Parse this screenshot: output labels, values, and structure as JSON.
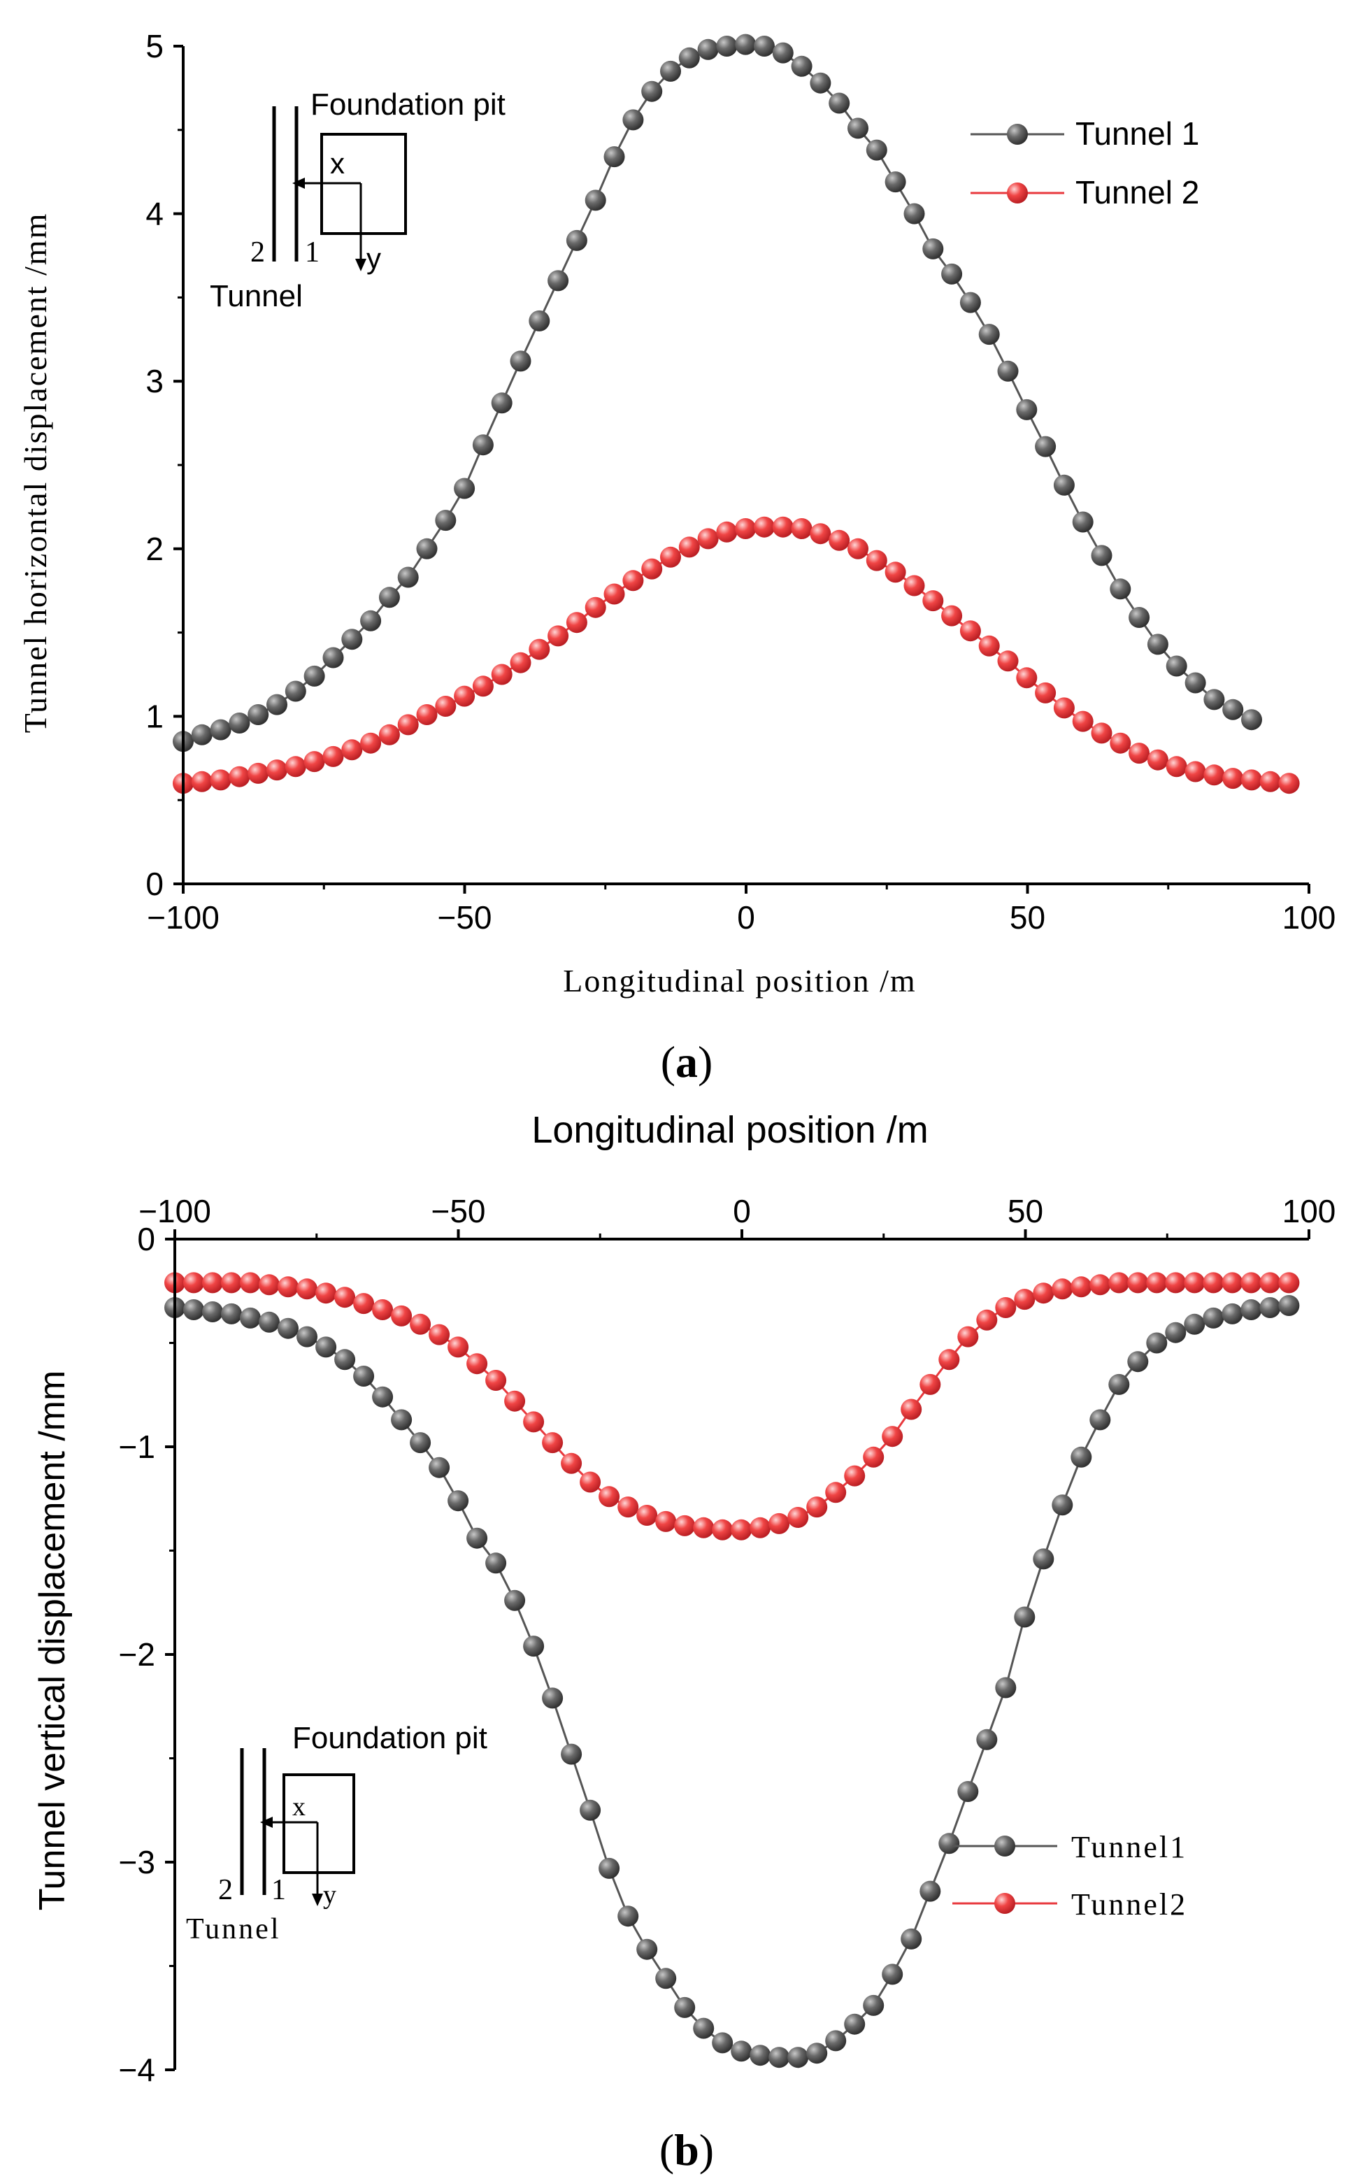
{
  "chart_data": [
    {
      "id": "a",
      "type": "line",
      "panel_label": "a",
      "title": "",
      "xlabel": "Longitudinal position /m",
      "ylabel": "Tunnel horizontal displacement /mm",
      "xlim": [
        -100,
        100
      ],
      "ylim": [
        0,
        5
      ],
      "xticks": [
        "−100",
        "−50",
        "0",
        "50",
        "100"
      ],
      "xtick_values": [
        -100,
        -50,
        0,
        50,
        100
      ],
      "yticks": [
        "0",
        "1",
        "2",
        "3",
        "4",
        "5"
      ],
      "ytick_values": [
        0,
        1,
        2,
        3,
        4,
        5
      ],
      "legend_position": "top-right",
      "grid": false,
      "series": [
        {
          "name": "Tunnel 1",
          "color": "#555555",
          "marker_highlight": "#b8b8b8",
          "line_color": "#555555",
          "x_start": -100,
          "x_step": 3.33,
          "values": [
            0.85,
            0.89,
            0.92,
            0.96,
            1.01,
            1.07,
            1.15,
            1.24,
            1.35,
            1.46,
            1.57,
            1.71,
            1.83,
            2.0,
            2.17,
            2.36,
            2.62,
            2.87,
            3.12,
            3.36,
            3.6,
            3.84,
            4.08,
            4.34,
            4.56,
            4.73,
            4.85,
            4.93,
            4.98,
            5.0,
            5.01,
            5.0,
            4.96,
            4.88,
            4.78,
            4.66,
            4.51,
            4.38,
            4.19,
            4.0,
            3.79,
            3.64,
            3.47,
            3.28,
            3.06,
            2.83,
            2.61,
            2.38,
            2.16,
            1.96,
            1.76,
            1.59,
            1.43,
            1.3,
            1.2,
            1.1,
            1.04,
            0.98
          ]
        },
        {
          "name": "Tunnel 2",
          "color": "#e8383d",
          "marker_highlight": "#ffc6c6",
          "line_color": "#e8383d",
          "x_start": -100,
          "x_step": 3.33,
          "values": [
            0.6,
            0.61,
            0.62,
            0.64,
            0.66,
            0.68,
            0.7,
            0.73,
            0.76,
            0.8,
            0.84,
            0.89,
            0.95,
            1.01,
            1.06,
            1.12,
            1.18,
            1.25,
            1.32,
            1.4,
            1.48,
            1.56,
            1.65,
            1.73,
            1.81,
            1.88,
            1.95,
            2.01,
            2.06,
            2.1,
            2.12,
            2.13,
            2.13,
            2.12,
            2.09,
            2.05,
            2.0,
            1.93,
            1.86,
            1.78,
            1.69,
            1.6,
            1.51,
            1.42,
            1.33,
            1.23,
            1.14,
            1.05,
            0.97,
            0.9,
            0.84,
            0.78,
            0.74,
            0.7,
            0.67,
            0.65,
            0.63,
            0.62,
            0.61,
            0.6
          ]
        }
      ],
      "inset": {
        "top_label": "Foundation pit",
        "x_label": "x",
        "y_label": "y",
        "line_label_left": "2",
        "line_label_right": "1",
        "bottom_label": "Tunnel"
      }
    },
    {
      "id": "b",
      "type": "line",
      "panel_label": "b",
      "title": "",
      "xlabel": "Longitudinal position /m",
      "ylabel": "Tunnel vertical displacement /mm",
      "xlim": [
        -100,
        100
      ],
      "ylim": [
        -4,
        0
      ],
      "xaxis_position": "top",
      "xticks": [
        "−100",
        "−50",
        "0",
        "50",
        "100"
      ],
      "xtick_values": [
        -100,
        -50,
        0,
        50,
        100
      ],
      "yticks": [
        "0",
        "−1",
        "−2",
        "−3",
        "−4"
      ],
      "ytick_values": [
        0,
        -1,
        -2,
        -3,
        -4
      ],
      "legend_position": "bottom-right",
      "grid": false,
      "series": [
        {
          "name": "Tunnel1",
          "color": "#555555",
          "marker_highlight": "#b8b8b8",
          "line_color": "#555555",
          "x_start": -100,
          "x_step": 3.33,
          "values": [
            -0.33,
            -0.34,
            -0.35,
            -0.36,
            -0.38,
            -0.4,
            -0.43,
            -0.47,
            -0.52,
            -0.58,
            -0.66,
            -0.76,
            -0.87,
            -0.98,
            -1.1,
            -1.26,
            -1.44,
            -1.56,
            -1.74,
            -1.96,
            -2.21,
            -2.48,
            -2.75,
            -3.03,
            -3.26,
            -3.42,
            -3.56,
            -3.7,
            -3.8,
            -3.87,
            -3.91,
            -3.93,
            -3.94,
            -3.94,
            -3.92,
            -3.86,
            -3.78,
            -3.69,
            -3.54,
            -3.37,
            -3.14,
            -2.91,
            -2.66,
            -2.41,
            -2.16,
            -1.82,
            -1.54,
            -1.28,
            -1.05,
            -0.87,
            -0.7,
            -0.59,
            -0.5,
            -0.45,
            -0.41,
            -0.38,
            -0.36,
            -0.34,
            -0.33,
            -0.32,
            -0.31,
            -0.3
          ]
        },
        {
          "name": "Tunnel2",
          "color": "#e8383d",
          "marker_highlight": "#ffc6c6",
          "line_color": "#e8383d",
          "x_start": -100,
          "x_step": 3.33,
          "values": [
            -0.21,
            -0.21,
            -0.21,
            -0.21,
            -0.21,
            -0.22,
            -0.23,
            -0.24,
            -0.26,
            -0.28,
            -0.31,
            -0.34,
            -0.37,
            -0.41,
            -0.46,
            -0.52,
            -0.6,
            -0.68,
            -0.78,
            -0.88,
            -0.98,
            -1.08,
            -1.17,
            -1.24,
            -1.29,
            -1.33,
            -1.36,
            -1.38,
            -1.39,
            -1.4,
            -1.4,
            -1.39,
            -1.37,
            -1.34,
            -1.29,
            -1.22,
            -1.14,
            -1.05,
            -0.95,
            -0.82,
            -0.7,
            -0.58,
            -0.47,
            -0.39,
            -0.33,
            -0.29,
            -0.26,
            -0.24,
            -0.23,
            -0.22,
            -0.21,
            -0.21,
            -0.21,
            -0.21,
            -0.21,
            -0.21,
            -0.21,
            -0.21,
            -0.21,
            -0.21
          ]
        }
      ],
      "inset": {
        "top_label": "Foundation pit",
        "x_label": "x",
        "y_label": "y",
        "line_label_left": "2",
        "line_label_right": "1",
        "bottom_label": "Tunnel"
      }
    }
  ]
}
